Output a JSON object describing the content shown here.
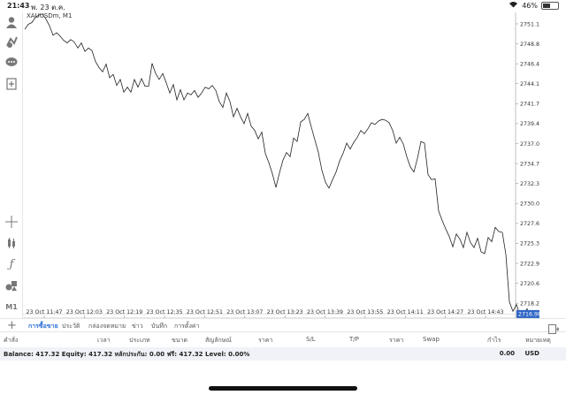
{
  "status_bar": {
    "time": "21:43",
    "date": "พ. 23 ต.ค.",
    "battery": "46%",
    "battery_level": 0.46
  },
  "chart": {
    "title": "XAUUSDm, M1",
    "current_price": "2716.980"
  },
  "chart_data": {
    "type": "line",
    "title": "XAUUSDm, M1",
    "x_ticks": [
      "23 Oct 11:47",
      "23 Oct 12:03",
      "23 Oct 12:19",
      "23 Oct 12:35",
      "23 Oct 12:51",
      "23 Oct 13:07",
      "23 Oct 13:23",
      "23 Oct 13:39",
      "23 Oct 13:55",
      "23 Oct 14:11",
      "23 Oct 14:27",
      "23 Oct 14:43"
    ],
    "y_ticks": [
      "2751.150",
      "2748.800",
      "2746.450",
      "2744.100",
      "2741.750",
      "2739.400",
      "2737.050",
      "2734.700",
      "2732.350",
      "2730.000",
      "2727.650",
      "2725.300",
      "2722.950",
      "2720.600",
      "2718.250"
    ],
    "ylim": [
      2716.5,
      2752.5
    ],
    "last_price": 2716.98,
    "grid": false,
    "series": [
      {
        "values": [
          2750.5,
          2751.1,
          2751.3,
          2751.9,
          2752.2,
          2752.3,
          2751.7,
          2750.9,
          2749.8,
          2750.1,
          2749.7,
          2749.2,
          2748.9,
          2749.3,
          2749.0,
          2748.3,
          2748.9,
          2747.9,
          2748.3,
          2748.0,
          2746.7,
          2746.0,
          2745.5,
          2746.4,
          2744.8,
          2745.2,
          2743.9,
          2744.6,
          2743.1,
          2743.7,
          2743.1,
          2744.6,
          2743.7,
          2744.7,
          2743.8,
          2743.8,
          2746.5,
          2745.3,
          2744.6,
          2745.3,
          2744.2,
          2743.0,
          2744.0,
          2742.2,
          2743.4,
          2742.2,
          2743.0,
          2742.8,
          2743.3,
          2742.5,
          2743.0,
          2743.7,
          2743.5,
          2743.9,
          2743.3,
          2742.0,
          2741.3,
          2743.0,
          2742.0,
          2740.2,
          2741.2,
          2740.2,
          2739.4,
          2740.6,
          2739.1,
          2738.6,
          2737.6,
          2738.4,
          2735.9,
          2734.8,
          2733.5,
          2731.9,
          2733.6,
          2735.1,
          2736.0,
          2735.5,
          2737.7,
          2737.3,
          2739.6,
          2739.9,
          2740.6,
          2739.0,
          2737.5,
          2736.0,
          2733.9,
          2732.5,
          2731.8,
          2732.8,
          2733.7,
          2735.0,
          2735.9,
          2737.1,
          2736.4,
          2737.2,
          2737.8,
          2738.6,
          2738.2,
          2738.8,
          2739.5,
          2739.3,
          2739.7,
          2739.9,
          2739.8,
          2739.5,
          2738.6,
          2737.1,
          2737.8,
          2737.0,
          2735.5,
          2734.3,
          2733.7,
          2735.3,
          2737.3,
          2737.1,
          2733.4,
          2732.8,
          2732.9,
          2729.1,
          2728.0,
          2727.0,
          2726.1,
          2724.9,
          2726.4,
          2725.8,
          2724.8,
          2726.6,
          2725.4,
          2724.8,
          2725.9,
          2724.3,
          2724.1,
          2726.0,
          2725.5,
          2727.2,
          2726.7,
          2726.6,
          2724.0,
          2718.4,
          2717.3,
          2718.1,
          2716.8,
          2717.0,
          2717.6,
          2716.2
        ]
      }
    ]
  },
  "tabs": [
    {
      "label": "การซื้อขาย",
      "active": true
    },
    {
      "label": "ประวัติ",
      "active": false
    },
    {
      "label": "กล่องจดหมาย",
      "active": false
    },
    {
      "label": "ข่าว",
      "active": false
    },
    {
      "label": "บันทึก",
      "active": false
    },
    {
      "label": "การตั้งค่า",
      "active": false
    }
  ],
  "columns": [
    "คำสั่ง",
    "เวลา",
    "ประเภท",
    "ขนาด",
    "สัญลักษณ์",
    "ราคา",
    "S/L",
    "T/P",
    "ราคา",
    "Swap",
    "กำไร",
    "หมายเหตุ"
  ],
  "balance": {
    "summary": "Balance: 417.32 Equity: 417.32 หลักประกัน: 0.00 ฟรี: 417.32 Level: 0.00%",
    "profit": "0.00",
    "currency": "USD"
  }
}
